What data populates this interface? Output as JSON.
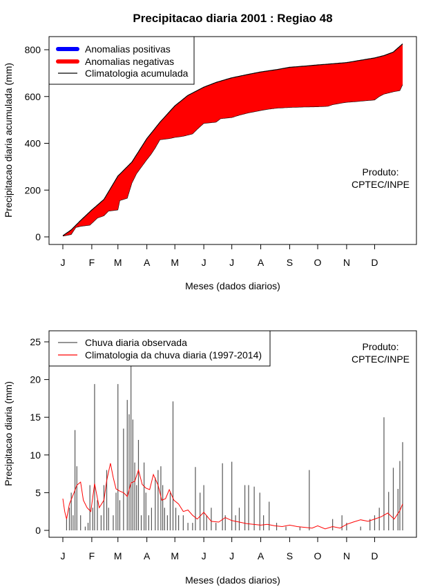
{
  "title": "Precipitacao diaria 2001 : Regiao 48",
  "credit": {
    "line1": "Produto:",
    "line2": "CPTEC/INPE"
  },
  "colors": {
    "positive": "#0000ff",
    "negative": "#ff0000",
    "climatology_line": "#000000",
    "observed": "#555555",
    "daily_climatology": "#ff0000"
  },
  "chart_data": [
    {
      "type": "area",
      "title": "Precipitacao diaria 2001 : Regiao 48",
      "xlabel": "Meses (dados diarios)",
      "ylabel": "Precipitacao diaria acumulada (mm)",
      "xlim": [
        0,
        366
      ],
      "ylim": [
        0,
        830
      ],
      "yticks": [
        0,
        200,
        400,
        600,
        800
      ],
      "month_ticks": {
        "days": [
          1,
          32,
          60,
          91,
          121,
          152,
          182,
          213,
          244,
          274,
          305,
          335
        ],
        "labels": [
          "J",
          "F",
          "M",
          "A",
          "M",
          "J",
          "J",
          "A",
          "S",
          "O",
          "N",
          "D"
        ]
      },
      "legend": [
        "Anomalias positivas",
        "Anomalias negativas",
        "Climatologia acumulada"
      ],
      "climatology_accumulated": {
        "days": [
          1,
          10,
          20,
          32,
          45,
          60,
          75,
          91,
          105,
          121,
          135,
          152,
          165,
          182,
          200,
          213,
          230,
          244,
          260,
          274,
          290,
          305,
          320,
          335,
          345,
          355,
          365
        ],
        "values": [
          5,
          30,
          70,
          115,
          160,
          260,
          320,
          420,
          490,
          560,
          605,
          640,
          660,
          680,
          695,
          705,
          715,
          725,
          730,
          735,
          740,
          745,
          755,
          765,
          775,
          790,
          825
        ]
      },
      "observed_accumulated": {
        "days": [
          1,
          10,
          15,
          20,
          30,
          38,
          45,
          50,
          60,
          62,
          70,
          75,
          80,
          91,
          95,
          100,
          105,
          115,
          121,
          130,
          140,
          145,
          152,
          165,
          170,
          182,
          190,
          200,
          213,
          220,
          230,
          244,
          260,
          274,
          285,
          290,
          300,
          305,
          315,
          320,
          335,
          340,
          345,
          350,
          355,
          362,
          365
        ],
        "values": [
          3,
          10,
          40,
          45,
          50,
          80,
          90,
          110,
          115,
          155,
          165,
          230,
          270,
          330,
          350,
          380,
          415,
          420,
          425,
          430,
          440,
          460,
          485,
          490,
          505,
          510,
          520,
          530,
          540,
          545,
          550,
          553,
          555,
          556,
          558,
          565,
          572,
          575,
          578,
          580,
          585,
          600,
          610,
          615,
          620,
          625,
          650
        ]
      }
    },
    {
      "type": "bar",
      "xlabel": "Meses (dados diarios)",
      "ylabel": "Precipitacao diaria (mm)",
      "xlim": [
        0,
        366
      ],
      "ylim": [
        0,
        25
      ],
      "yticks": [
        0,
        5,
        10,
        15,
        20,
        25
      ],
      "month_ticks": {
        "days": [
          1,
          32,
          60,
          91,
          121,
          152,
          182,
          213,
          244,
          274,
          305,
          335
        ],
        "labels": [
          "J",
          "F",
          "M",
          "A",
          "M",
          "J",
          "J",
          "A",
          "S",
          "O",
          "N",
          "D"
        ]
      },
      "legend": [
        "Chuva diaria observada",
        "Climatologia da chuva diaria (1997-2014)"
      ],
      "observed_daily": {
        "days": [
          5,
          8,
          10,
          12,
          14,
          16,
          20,
          25,
          28,
          30,
          33,
          35,
          38,
          42,
          45,
          48,
          50,
          55,
          58,
          60,
          62,
          66,
          70,
          72,
          74,
          76,
          78,
          80,
          82,
          85,
          88,
          90,
          93,
          96,
          100,
          103,
          106,
          108,
          110,
          113,
          116,
          119,
          122,
          125,
          130,
          135,
          140,
          143,
          148,
          152,
          155,
          160,
          165,
          172,
          175,
          182,
          186,
          190,
          196,
          200,
          206,
          212,
          216,
          222,
          230,
          240,
          255,
          265,
          290,
          300,
          305,
          320,
          330,
          335,
          340,
          345,
          350,
          355,
          360,
          362,
          365
        ],
        "values": [
          1.5,
          3,
          5,
          2,
          13.3,
          8.5,
          2,
          0.5,
          1,
          6,
          3,
          19.4,
          4,
          2,
          6,
          8,
          3,
          2,
          5,
          19.4,
          4,
          13.5,
          17.3,
          15.4,
          22,
          14.7,
          9,
          6,
          12,
          2,
          9,
          5,
          2,
          3,
          7,
          8,
          8.5,
          6,
          3,
          2,
          5,
          17.1,
          3,
          2,
          2,
          1,
          1,
          8.4,
          5,
          6,
          2,
          3,
          1,
          8.9,
          2,
          9.1,
          2,
          3,
          6,
          6,
          5.8,
          5,
          2,
          3.8,
          1,
          0.5,
          0.5,
          8,
          1.5,
          2,
          1,
          0.5,
          1.5,
          2,
          3,
          15,
          5.1,
          8.3,
          5.5,
          9.2,
          11.7
        ]
      },
      "climatology_daily": {
        "days": [
          1,
          3,
          5,
          8,
          10,
          13,
          16,
          20,
          23,
          27,
          31,
          35,
          40,
          45,
          48,
          52,
          55,
          58,
          62,
          66,
          70,
          74,
          78,
          82,
          86,
          90,
          94,
          98,
          103,
          107,
          111,
          115,
          120,
          125,
          130,
          135,
          140,
          145,
          152,
          160,
          168,
          175,
          182,
          190,
          198,
          205,
          213,
          220,
          228,
          236,
          244,
          252,
          260,
          268,
          274,
          282,
          290,
          298,
          305,
          312,
          320,
          328,
          335,
          342,
          349,
          356,
          362,
          365
        ],
        "values": [
          4.2,
          2.5,
          1.5,
          3.5,
          4.1,
          5,
          6,
          6.4,
          4,
          3,
          2.5,
          6.2,
          3,
          4,
          6.6,
          8.9,
          7,
          5.5,
          5.2,
          5,
          4.5,
          6.3,
          6.5,
          8,
          6.1,
          5.6,
          5.4,
          7.4,
          6,
          4,
          4.2,
          5.4,
          4,
          3.5,
          2.5,
          2.7,
          2,
          1.5,
          2.4,
          1.2,
          1.1,
          1.7,
          1.3,
          1.1,
          0.9,
          0.8,
          0.7,
          0.8,
          0.6,
          0.5,
          0.7,
          0.5,
          0.4,
          0.3,
          0.6,
          0.2,
          0.5,
          0.3,
          0.8,
          1.1,
          1.4,
          1.2,
          1.5,
          1.8,
          2.3,
          1.5,
          2.6,
          3.5
        ]
      }
    }
  ]
}
